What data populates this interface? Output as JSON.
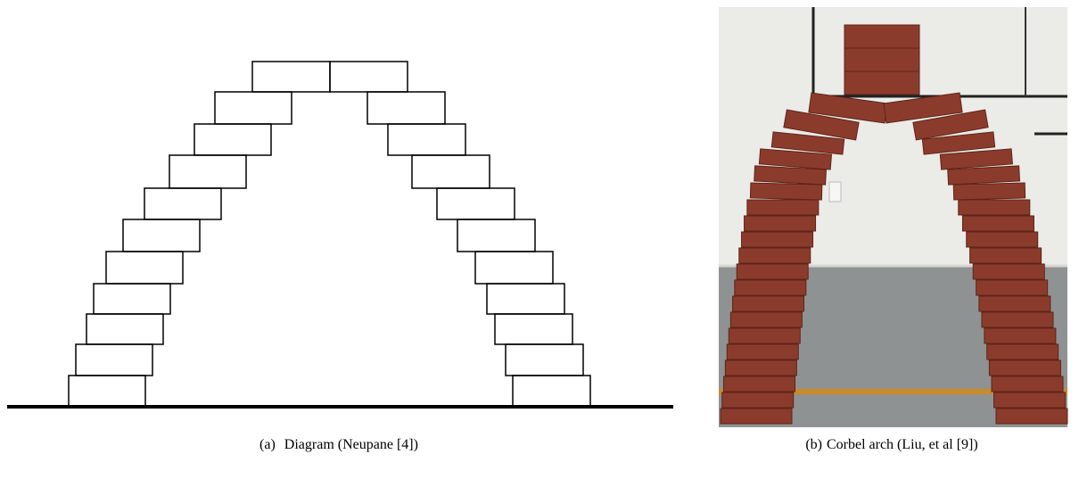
{
  "figure": {
    "panels": [
      {
        "label": "(a)",
        "caption": "Diagram (Neupane [4])"
      },
      {
        "label": "(b)",
        "caption": "Corbel arch (Liu, et al [9])"
      }
    ]
  }
}
